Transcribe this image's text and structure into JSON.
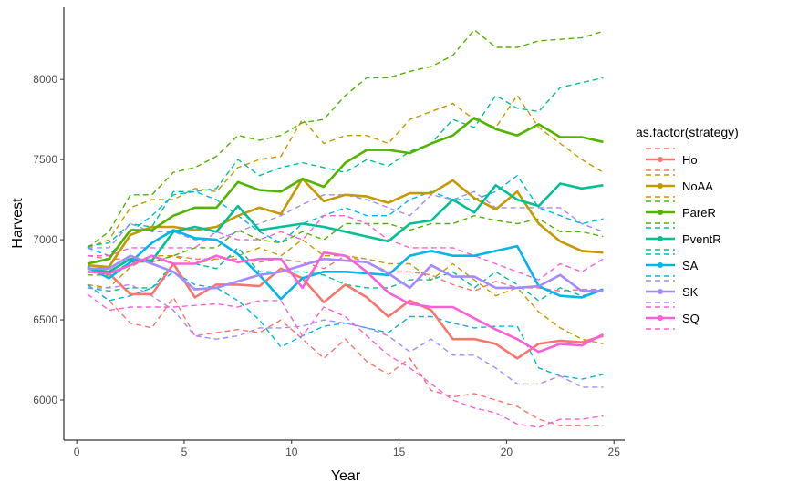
{
  "chart_data": {
    "type": "line",
    "xlabel": "Year",
    "ylabel": "Harvest",
    "xlim": [
      -0.6,
      25.5
    ],
    "ylim": [
      5750,
      8450
    ],
    "x_ticks": [
      0,
      5,
      10,
      15,
      20,
      25
    ],
    "y_ticks": [
      6000,
      6500,
      7000,
      7500,
      8000
    ],
    "grid": false,
    "legend": {
      "title": "as.factor(strategy)",
      "position": "right"
    },
    "x": [
      0.5,
      1.5,
      2.5,
      3.5,
      4.5,
      5.5,
      6.5,
      7.5,
      8.5,
      9.5,
      10.5,
      11.5,
      12.5,
      13.5,
      14.5,
      15.5,
      16.5,
      17.5,
      18.5,
      19.5,
      20.5,
      21.5,
      22.5,
      23.5,
      24.5
    ],
    "series": [
      {
        "name": "Ho",
        "color": "#F8766D",
        "mean": [
          6800,
          6790,
          6660,
          6660,
          6850,
          6640,
          6720,
          6720,
          6710,
          6820,
          6760,
          6610,
          6720,
          6640,
          6520,
          6620,
          6560,
          6380,
          6380,
          6350,
          6260,
          6350,
          6370,
          6360,
          6400
        ],
        "upper": [
          6900,
          6880,
          6880,
          6860,
          6900,
          6880,
          6880,
          6880,
          6860,
          6880,
          6860,
          6820,
          6900,
          6860,
          6800,
          6800,
          6780,
          6720,
          6680,
          6740,
          6700,
          6700,
          6680,
          6690,
          6690
        ],
        "lower": [
          6720,
          6620,
          6480,
          6450,
          6640,
          6400,
          6420,
          6440,
          6420,
          6500,
          6380,
          6260,
          6380,
          6240,
          6160,
          6260,
          6060,
          6020,
          6040,
          6000,
          5960,
          5880,
          5840,
          5840,
          5840
        ]
      },
      {
        "name": "NoAA",
        "color": "#C49A00",
        "mean": [
          6840,
          6830,
          7030,
          7080,
          7080,
          7060,
          7080,
          7150,
          7200,
          7160,
          7380,
          7240,
          7280,
          7270,
          7230,
          7290,
          7290,
          7370,
          7260,
          7190,
          7300,
          7100,
          6990,
          6930,
          6920
        ],
        "upper": [
          6950,
          7000,
          7200,
          7250,
          7250,
          7320,
          7300,
          7450,
          7500,
          7520,
          7750,
          7600,
          7650,
          7650,
          7600,
          7750,
          7800,
          7850,
          7750,
          7700,
          7900,
          7700,
          7600,
          7500,
          7420
        ],
        "lower": [
          6720,
          6700,
          6830,
          6900,
          6900,
          6850,
          6880,
          6900,
          6950,
          6900,
          7000,
          6900,
          6900,
          6880,
          6850,
          6850,
          6750,
          6850,
          6750,
          6650,
          6700,
          6550,
          6450,
          6380,
          6350
        ]
      },
      {
        "name": "PareR",
        "color": "#53B400",
        "mean": [
          6850,
          6880,
          7060,
          7060,
          7150,
          7200,
          7200,
          7360,
          7310,
          7300,
          7380,
          7330,
          7480,
          7560,
          7560,
          7540,
          7600,
          7650,
          7760,
          7690,
          7650,
          7720,
          7640,
          7640,
          7610
        ],
        "upper": [
          6950,
          7050,
          7280,
          7280,
          7420,
          7450,
          7520,
          7650,
          7620,
          7650,
          7730,
          7750,
          7900,
          8010,
          8010,
          8050,
          8080,
          8150,
          8310,
          8200,
          8200,
          8240,
          8250,
          8260,
          8300
        ],
        "lower": [
          6780,
          6780,
          6860,
          6860,
          6900,
          6950,
          6950,
          7060,
          7000,
          6980,
          7050,
          7000,
          7100,
          7100,
          7100,
          7060,
          7100,
          7100,
          7150,
          7120,
          7100,
          7130,
          7050,
          7050,
          7020
        ]
      },
      {
        "name": "PventR",
        "color": "#00C094",
        "mean": [
          6820,
          6800,
          6880,
          6870,
          7050,
          7080,
          7050,
          7210,
          7060,
          7080,
          7100,
          7080,
          7050,
          7020,
          6990,
          7100,
          7120,
          7250,
          7170,
          7340,
          7250,
          7210,
          7350,
          7320,
          7340
        ],
        "upper": [
          6960,
          6980,
          7100,
          7080,
          7300,
          7300,
          7320,
          7500,
          7400,
          7450,
          7480,
          7450,
          7420,
          7500,
          7460,
          7550,
          7600,
          7750,
          7700,
          7900,
          7820,
          7800,
          7950,
          7980,
          8010
        ],
        "lower": [
          6700,
          6680,
          6700,
          6700,
          6850,
          6850,
          6820,
          6950,
          6800,
          6800,
          6800,
          6780,
          6720,
          6700,
          6700,
          6750,
          6750,
          6800,
          6700,
          6800,
          6720,
          6620,
          6700,
          6650,
          6680
        ]
      },
      {
        "name": "SA",
        "color": "#00B6EB",
        "mean": [
          6830,
          6760,
          6860,
          6980,
          7060,
          7010,
          7000,
          6910,
          6780,
          6630,
          6760,
          6800,
          6800,
          6790,
          6780,
          6900,
          6930,
          6900,
          6900,
          6930,
          6960,
          6710,
          6650,
          6640,
          6690
        ],
        "upper": [
          6950,
          6900,
          7050,
          7150,
          7280,
          7300,
          7250,
          7150,
          7050,
          6980,
          7100,
          7150,
          7200,
          7150,
          7150,
          7250,
          7300,
          7250,
          7250,
          7300,
          7400,
          7200,
          7150,
          7100,
          7130
        ],
        "lower": [
          6720,
          6620,
          6650,
          6700,
          6800,
          6720,
          6700,
          6620,
          6500,
          6330,
          6400,
          6460,
          6480,
          6450,
          6420,
          6520,
          6520,
          6480,
          6450,
          6460,
          6460,
          6200,
          6150,
          6130,
          6160
        ]
      },
      {
        "name": "SK",
        "color": "#A58AFF",
        "mean": [
          6820,
          6820,
          6900,
          6850,
          6800,
          6690,
          6700,
          6740,
          6780,
          6800,
          6840,
          6880,
          6870,
          6860,
          6790,
          6700,
          6840,
          6770,
          6770,
          6700,
          6700,
          6710,
          6780,
          6680,
          6680
        ],
        "upper": [
          6950,
          6950,
          7100,
          7050,
          7050,
          7000,
          7000,
          7050,
          7100,
          7150,
          7220,
          7280,
          7280,
          7250,
          7200,
          7150,
          7280,
          7250,
          7300,
          7200,
          7200,
          7200,
          7200,
          7100,
          7050
        ],
        "lower": [
          6700,
          6700,
          6720,
          6650,
          6560,
          6400,
          6380,
          6400,
          6450,
          6450,
          6460,
          6500,
          6480,
          6450,
          6400,
          6300,
          6380,
          6280,
          6280,
          6200,
          6100,
          6100,
          6150,
          6080,
          6080
        ]
      },
      {
        "name": "SQ",
        "color": "#FB61D7",
        "mean": [
          6800,
          6790,
          6840,
          6900,
          6850,
          6850,
          6900,
          6860,
          6880,
          6880,
          6700,
          6920,
          6900,
          6800,
          6670,
          6600,
          6580,
          6580,
          6510,
          6440,
          6380,
          6300,
          6350,
          6340,
          6410
        ],
        "upper": [
          6900,
          6900,
          6950,
          6950,
          6950,
          6950,
          7050,
          7000,
          7000,
          7050,
          7000,
          7150,
          7150,
          7100,
          7000,
          6950,
          6950,
          6950,
          6900,
          6850,
          6800,
          6750,
          6850,
          6800,
          6880
        ],
        "lower": [
          6660,
          6560,
          6580,
          6580,
          6580,
          6590,
          6600,
          6580,
          6620,
          6620,
          6400,
          6580,
          6520,
          6400,
          6280,
          6200,
          6100,
          6000,
          5950,
          5920,
          5850,
          5830,
          5880,
          5880,
          5900
        ]
      }
    ]
  }
}
